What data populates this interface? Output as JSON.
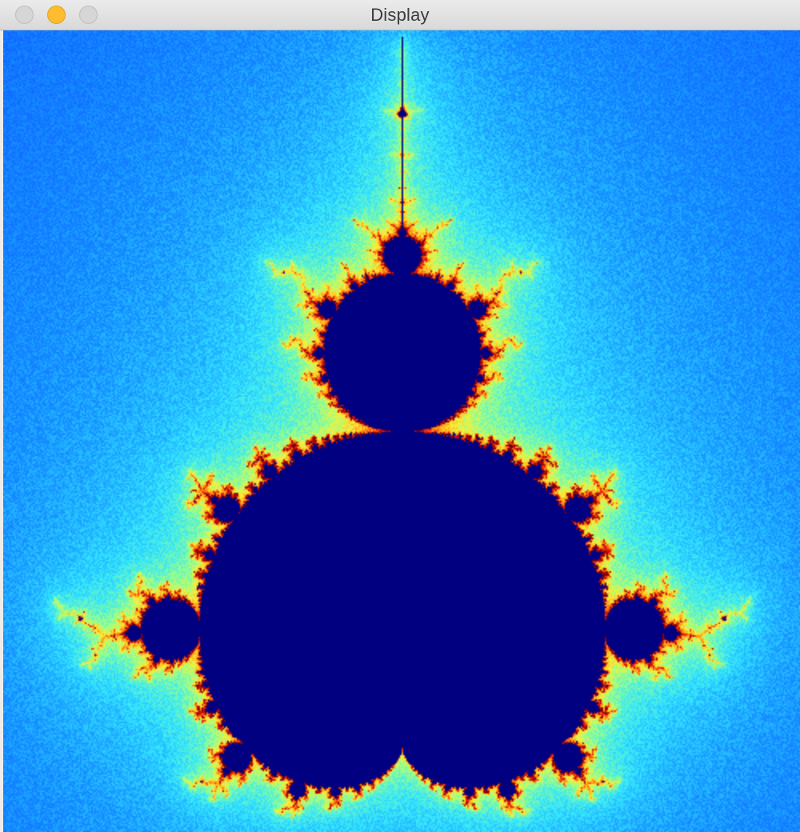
{
  "window": {
    "title": "Display",
    "buttons": {
      "close": "close-button",
      "minimize": "minimize-button",
      "zoom": "zoom-button"
    }
  },
  "colors": {
    "set_interior": "#000080",
    "outer_far": "#0a2cff",
    "cyan": "#33e6ff",
    "yellow": "#ffee33",
    "red": "#e81c10",
    "dark_red": "#8a0000"
  }
}
